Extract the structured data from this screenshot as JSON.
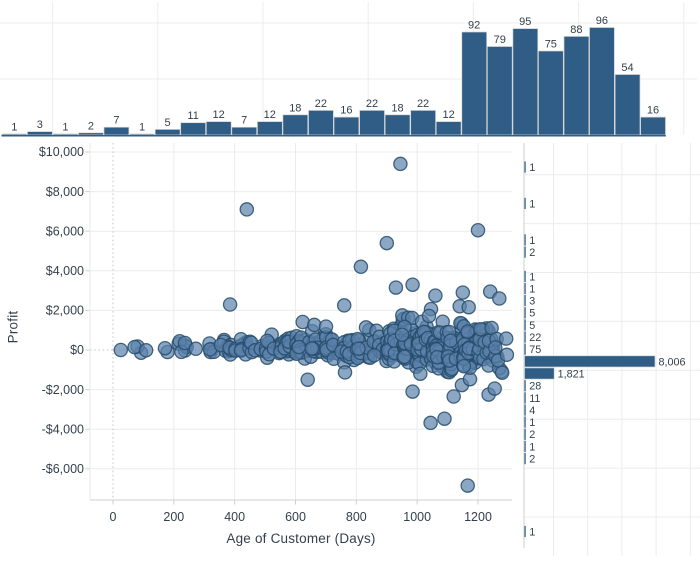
{
  "colors": {
    "bar_fill": "#2f5d86",
    "bar_stroke": "#d6d6d6",
    "point_fill": "#5b82ab",
    "point_stroke": "#264c6b",
    "text": "#333f4c",
    "gridline": "#ececec",
    "zero_gridline": "#c6c6c6",
    "axis_line": "#cfcfcf"
  },
  "chart_data": [
    {
      "id": "age_histogram",
      "type": "bar",
      "position": "top-margin",
      "bin_width_days": 50,
      "x_range_days": [
        0,
        1300
      ],
      "counts": [
        1,
        3,
        1,
        2,
        7,
        1,
        5,
        11,
        12,
        7,
        12,
        18,
        22,
        16,
        22,
        18,
        22,
        12,
        92,
        79,
        95,
        75,
        88,
        96,
        54,
        16
      ],
      "grid": "on",
      "value_axis_hidden": true
    },
    {
      "id": "scatter",
      "type": "scatter",
      "xlabel": "Age of Customer (Days)",
      "ylabel": "Profit",
      "x_ticks": [
        0,
        200,
        400,
        600,
        800,
        1000,
        1200
      ],
      "y_tick_values": [
        10000,
        8000,
        6000,
        4000,
        2000,
        0,
        -2000,
        -4000,
        -6000
      ],
      "y_tick_labels": [
        "$10,000",
        "$8,000",
        "$6,000",
        "$4,000",
        "$2,000",
        "$0",
        "-$2,000",
        "-$4,000",
        "-$6,000"
      ],
      "xlim": [
        -75,
        1315
      ],
      "ylim": [
        -7450,
        10450
      ],
      "grid": "on",
      "legend": "none",
      "outliers": [
        [
          945,
          9400
        ],
        [
          440,
          7100
        ],
        [
          1200,
          6050
        ],
        [
          900,
          5400
        ],
        [
          815,
          4200
        ],
        [
          930,
          3150
        ],
        [
          985,
          3300
        ],
        [
          1060,
          2750
        ],
        [
          1150,
          2900
        ],
        [
          1240,
          2950
        ],
        [
          1270,
          2600
        ],
        [
          385,
          2300
        ],
        [
          760,
          2250
        ],
        [
          1044,
          -3680
        ],
        [
          1090,
          -3470
        ],
        [
          1166,
          -6850
        ],
        [
          985,
          -2100
        ],
        [
          1120,
          -2350
        ],
        [
          1235,
          -2250
        ],
        [
          1255,
          -1950
        ],
        [
          640,
          -1500
        ]
      ],
      "cluster": {
        "seed": 11,
        "bin_width_days": 50,
        "bin_counts": [
          1,
          3,
          1,
          2,
          7,
          1,
          5,
          11,
          12,
          7,
          12,
          18,
          22,
          16,
          22,
          18,
          22,
          12,
          92,
          79,
          95,
          75,
          88,
          96,
          54,
          16
        ],
        "tall_bin_start": 18,
        "tall_bin_keep": 0.62,
        "center": 80,
        "sd_base": 120,
        "sd_growth": 560,
        "clamp": [
          -2100,
          2400
        ]
      }
    },
    {
      "id": "profit_histogram",
      "type": "bar",
      "position": "right-margin",
      "orientation": "horizontal",
      "grid": "on",
      "rows": [
        {
          "label": "1",
          "count": 1,
          "slot": 0
        },
        {
          "label": "1",
          "count": 1,
          "slot": 3
        },
        {
          "label": "1",
          "count": 1,
          "slot": 6
        },
        {
          "label": "2",
          "count": 2,
          "slot": 7
        },
        {
          "label": "1",
          "count": 1,
          "slot": 9
        },
        {
          "label": "1",
          "count": 1,
          "slot": 10
        },
        {
          "label": "3",
          "count": 3,
          "slot": 11
        },
        {
          "label": "5",
          "count": 5,
          "slot": 12
        },
        {
          "label": "5",
          "count": 5,
          "slot": 13
        },
        {
          "label": "22",
          "count": 22,
          "slot": 14
        },
        {
          "label": "75",
          "count": 75,
          "slot": 15
        },
        {
          "label": "8,006",
          "count": 8006,
          "slot": 16
        },
        {
          "label": "1,821",
          "count": 1821,
          "slot": 17
        },
        {
          "label": "28",
          "count": 28,
          "slot": 18
        },
        {
          "label": "11",
          "count": 11,
          "slot": 19
        },
        {
          "label": "4",
          "count": 4,
          "slot": 20
        },
        {
          "label": "1",
          "count": 1,
          "slot": 21
        },
        {
          "label": "2",
          "count": 2,
          "slot": 22
        },
        {
          "label": "1",
          "count": 1,
          "slot": 23
        },
        {
          "label": "2",
          "count": 2,
          "slot": 24
        },
        {
          "label": "1",
          "count": 1,
          "slot": 30
        }
      ]
    }
  ]
}
